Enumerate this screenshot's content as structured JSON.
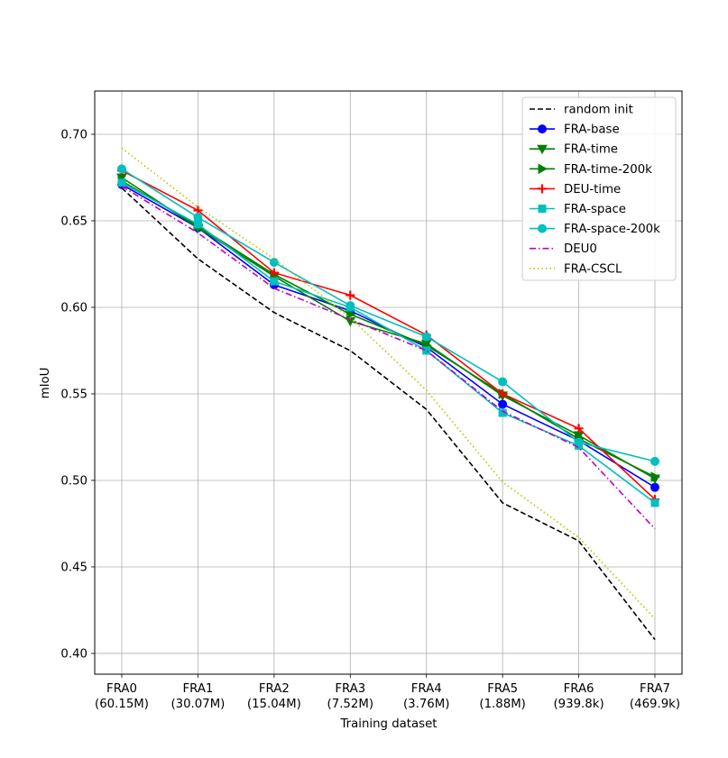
{
  "chart_data": {
    "type": "line",
    "title": "",
    "xlabel": "Training dataset",
    "ylabel": "mIoU",
    "ylim": [
      0.388,
      0.725
    ],
    "yticks": [
      "0.40",
      "0.45",
      "0.50",
      "0.55",
      "0.60",
      "0.65",
      "0.70"
    ],
    "ytick_values": [
      0.4,
      0.45,
      0.5,
      0.55,
      0.6,
      0.65,
      0.7
    ],
    "grid": true,
    "legend_position": "top-right",
    "categories": [
      {
        "name": "FRA0",
        "size": "(60.15M)"
      },
      {
        "name": "FRA1",
        "size": "(30.07M)"
      },
      {
        "name": "FRA2",
        "size": "(15.04M)"
      },
      {
        "name": "FRA3",
        "size": "(7.52M)"
      },
      {
        "name": "FRA4",
        "size": "(3.76M)"
      },
      {
        "name": "FRA5",
        "size": "(1.88M)"
      },
      {
        "name": "FRA6",
        "size": "(939.8k)"
      },
      {
        "name": "FRA7",
        "size": "(469.9k)"
      }
    ],
    "series": [
      {
        "name": "random init",
        "color": "#000000",
        "dash": "dashed",
        "marker": "none",
        "values": [
          0.669,
          0.628,
          0.597,
          0.575,
          0.541,
          0.487,
          0.465,
          0.408
        ]
      },
      {
        "name": "FRA-base",
        "color": "#0000ff",
        "dash": "solid",
        "marker": "circle",
        "values": [
          0.671,
          0.646,
          0.613,
          0.598,
          0.577,
          0.544,
          0.523,
          0.496
        ]
      },
      {
        "name": "FRA-time",
        "color": "#008000",
        "dash": "solid",
        "marker": "triangle-down",
        "values": [
          0.675,
          0.646,
          0.618,
          0.592,
          0.579,
          0.549,
          0.526,
          0.501
        ]
      },
      {
        "name": "FRA-time-200k",
        "color": "#008000",
        "dash": "solid",
        "marker": "triangle-right",
        "values": [
          0.673,
          0.647,
          0.619,
          0.596,
          0.578,
          0.55,
          0.524,
          0.502
        ]
      },
      {
        "name": "DEU-time",
        "color": "#ff0000",
        "dash": "solid",
        "marker": "plus",
        "values": [
          0.679,
          0.656,
          0.62,
          0.607,
          0.584,
          0.55,
          0.53,
          0.489
        ]
      },
      {
        "name": "FRA-space",
        "color": "#00bfbf",
        "dash": "solid",
        "marker": "square",
        "values": [
          0.672,
          0.648,
          0.615,
          0.6,
          0.575,
          0.539,
          0.52,
          0.487
        ]
      },
      {
        "name": "FRA-space-200k",
        "color": "#00bfbf",
        "dash": "solid",
        "marker": "circle",
        "values": [
          0.68,
          0.652,
          0.626,
          0.601,
          0.583,
          0.557,
          0.522,
          0.511
        ]
      },
      {
        "name": "DEU0",
        "color": "#bf00bf",
        "dash": "dashdot",
        "marker": "none",
        "values": [
          0.67,
          0.643,
          0.611,
          0.593,
          0.575,
          0.54,
          0.519,
          0.472
        ]
      },
      {
        "name": "FRA-CSCL",
        "color": "#bfbf00",
        "dash": "dotted",
        "marker": "none",
        "values": [
          0.692,
          0.658,
          0.628,
          0.594,
          0.552,
          0.499,
          0.467,
          0.42
        ]
      }
    ]
  }
}
